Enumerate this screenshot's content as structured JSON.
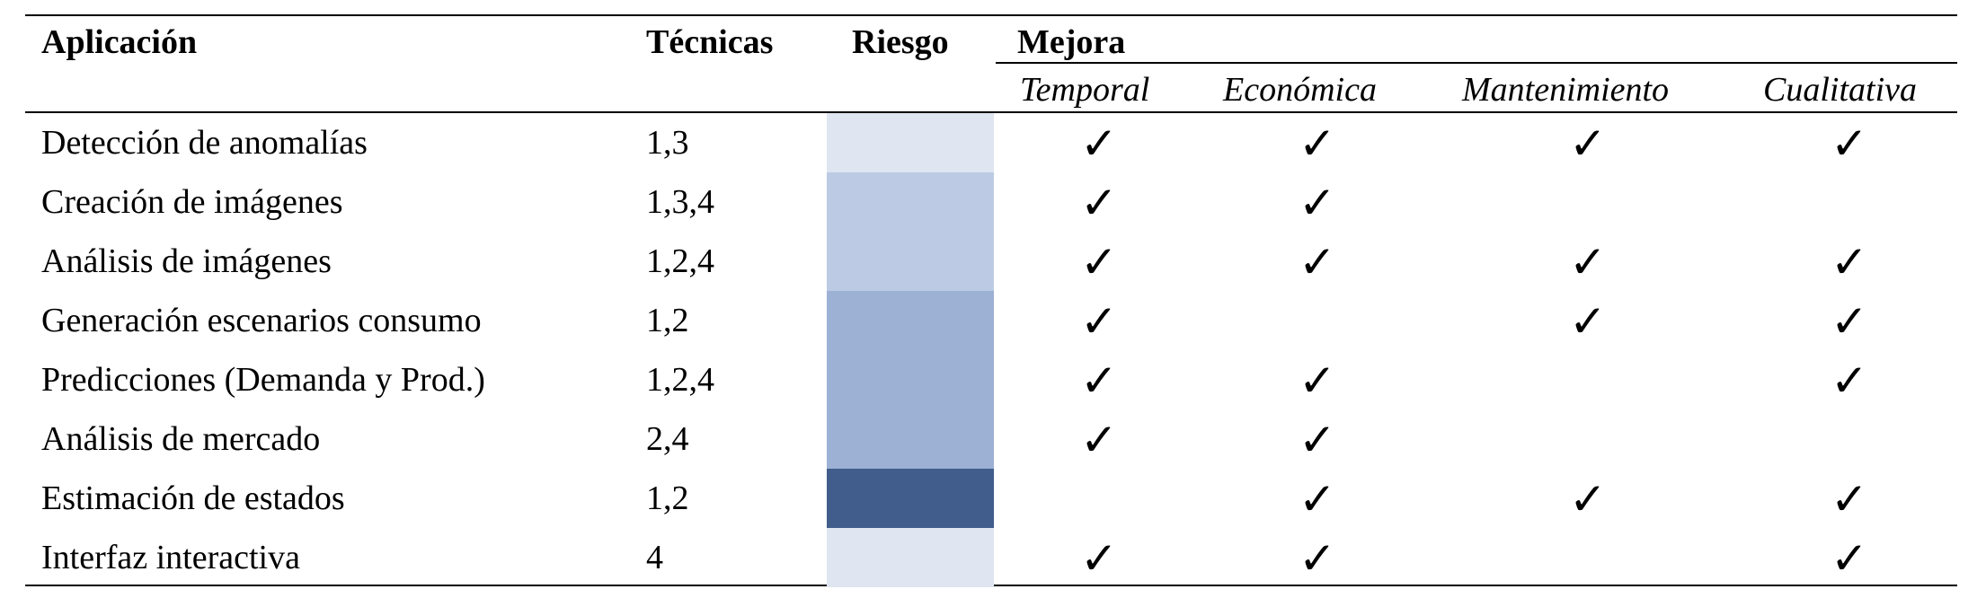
{
  "table": {
    "headers": {
      "aplicacion": "Aplicación",
      "tecnicas": "Técnicas",
      "riesgo": "Riesgo",
      "mejora": "Mejora",
      "mejora_sub": [
        "Temporal",
        "Económica",
        "Mantenimiento",
        "Cualitativa"
      ]
    },
    "check_symbol": "✓",
    "risk_colors": {
      "low": "#dfe5f1",
      "medium_low": "#bccbe3",
      "medium": "#9db1d4",
      "high": "#415d8b"
    },
    "rows": [
      {
        "aplicacion": "Detección de anomalías",
        "tecnicas": "1,3",
        "riesgo": "low",
        "mejora": {
          "temporal": true,
          "economica": true,
          "mantenimiento": true,
          "cualitativa": true
        }
      },
      {
        "aplicacion": "Creación de imágenes",
        "tecnicas": "1,3,4",
        "riesgo": "medium_low",
        "mejora": {
          "temporal": true,
          "economica": true,
          "mantenimiento": false,
          "cualitativa": false
        }
      },
      {
        "aplicacion": "Análisis de imágenes",
        "tecnicas": "1,2,4",
        "riesgo": "medium_low",
        "mejora": {
          "temporal": true,
          "economica": true,
          "mantenimiento": true,
          "cualitativa": true
        }
      },
      {
        "aplicacion": "Generación escenarios consumo",
        "tecnicas": "1,2",
        "riesgo": "medium",
        "mejora": {
          "temporal": true,
          "economica": false,
          "mantenimiento": true,
          "cualitativa": true
        }
      },
      {
        "aplicacion": "Predicciones (Demanda y Prod.)",
        "tecnicas": "1,2,4",
        "riesgo": "medium",
        "mejora": {
          "temporal": true,
          "economica": true,
          "mantenimiento": false,
          "cualitativa": true
        }
      },
      {
        "aplicacion": "Análisis de mercado",
        "tecnicas": "2,4",
        "riesgo": "medium",
        "mejora": {
          "temporal": true,
          "economica": true,
          "mantenimiento": false,
          "cualitativa": false
        }
      },
      {
        "aplicacion": "Estimación de estados",
        "tecnicas": "1,2",
        "riesgo": "high",
        "mejora": {
          "temporal": false,
          "economica": true,
          "mantenimiento": true,
          "cualitativa": true
        }
      },
      {
        "aplicacion": "Interfaz interactiva",
        "tecnicas": "4",
        "riesgo": "low",
        "mejora": {
          "temporal": true,
          "economica": true,
          "mantenimiento": false,
          "cualitativa": true
        }
      }
    ]
  }
}
